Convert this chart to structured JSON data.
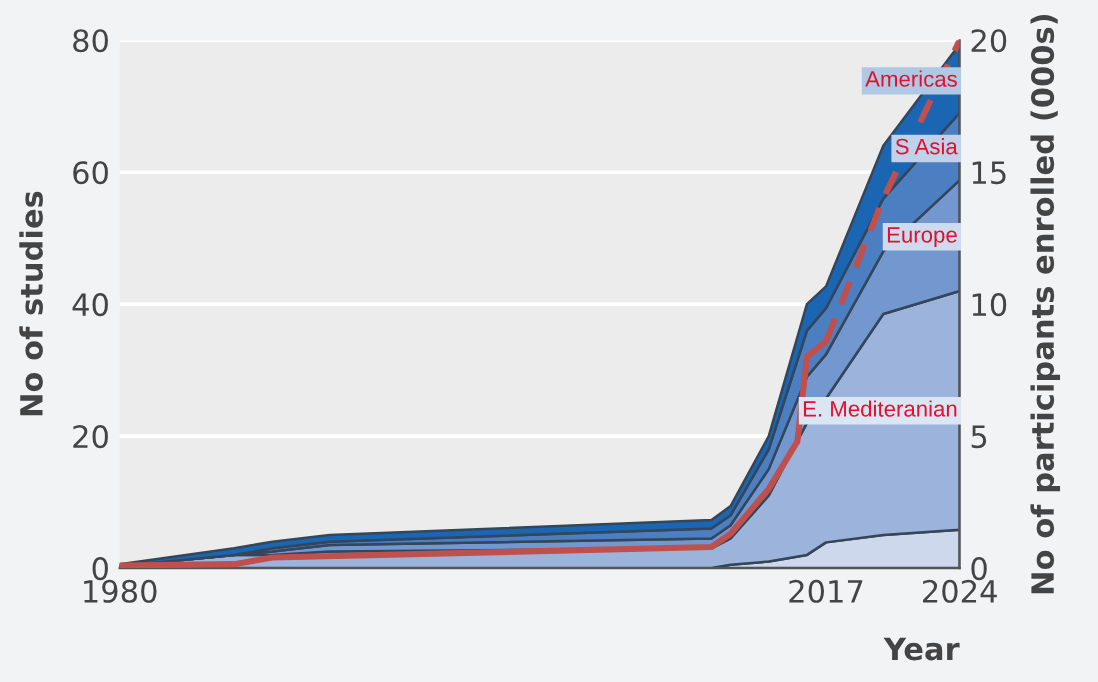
{
  "chart_data": {
    "type": "area",
    "stacked": true,
    "xlabel": "Year",
    "ylabel": "No of studies",
    "y2label": "No of participants enrolled (000s)",
    "x": [
      1980,
      1986,
      1988,
      1991,
      2011,
      2012,
      2014,
      2016,
      2017,
      2020,
      2024
    ],
    "xlim": [
      1980,
      2024
    ],
    "xticks": [
      1980,
      2017,
      2024
    ],
    "ylim": [
      0,
      80
    ],
    "yticks": [
      0,
      20,
      40,
      60,
      80
    ],
    "y2lim": [
      0,
      20
    ],
    "y2ticks": [
      0,
      5,
      10,
      15,
      20
    ],
    "grid": "y",
    "series": [
      {
        "color": "#cdd8ec",
        "values": [
          0,
          0,
          0,
          0,
          0,
          0.5,
          1,
          2,
          3.9,
          5,
          5.8
        ]
      },
      {
        "name": "E. Mediteranian",
        "color": "#9cb4dc",
        "values": [
          0.3,
          2,
          2,
          2.5,
          3,
          4,
          10,
          20,
          21.8,
          33.5,
          36.2
        ]
      },
      {
        "name": "Europe",
        "color": "#7398d0",
        "values": [
          0,
          0,
          0.5,
          1,
          1.5,
          2,
          4,
          7,
          6.7,
          9.5,
          16.8
        ]
      },
      {
        "name": "S Asia",
        "color": "#4c7ec2",
        "values": [
          0,
          0,
          0.5,
          0.5,
          1.5,
          1.5,
          3,
          7,
          7,
          8,
          10.2
        ]
      },
      {
        "name": "Americas",
        "color": "#1b66b2",
        "values": [
          0.3,
          1,
          1,
          1,
          1.3,
          1.4,
          2,
          4,
          3.3,
          8,
          10.4
        ]
      },
      {
        "type": "line",
        "axis": "y2",
        "color": "#c0504d",
        "line_style": "solid",
        "x": [
          1980,
          1986,
          1988,
          2011,
          2012,
          2014,
          2015.5,
          2016,
          2017
        ],
        "values": [
          0.1,
          0.15,
          0.4,
          0.8,
          1.3,
          3,
          4.8,
          8,
          8.6
        ]
      },
      {
        "type": "line",
        "axis": "y2",
        "color": "#c0504d",
        "line_style": "dashed",
        "x": [
          2017,
          2020,
          2024
        ],
        "values": [
          8.6,
          14,
          20
        ]
      }
    ]
  }
}
